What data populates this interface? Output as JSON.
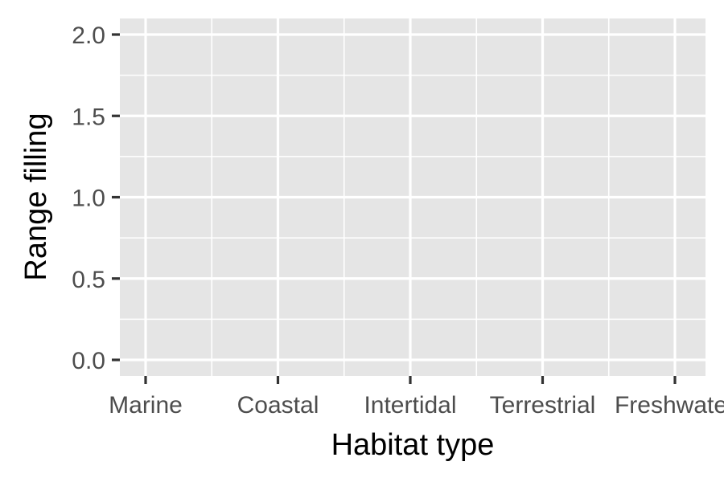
{
  "chart_data": {
    "type": "scatter",
    "title": "",
    "xlabel": "Habitat type",
    "ylabel": "Range filling",
    "categories": [
      "Marine",
      "Coastal",
      "Intertidal",
      "Terrestrial",
      "Freshwater"
    ],
    "ylim": [
      0,
      2
    ],
    "yticks": [
      0.0,
      0.5,
      1.0,
      1.5,
      2.0
    ],
    "ytick_labels": [
      "0.0",
      "0.5",
      "1.0",
      "1.5",
      "2.0"
    ],
    "series": [],
    "grid": true,
    "legend": "none",
    "colors": {
      "panel_background": "#e5e5e5",
      "grid_line": "#ffffff",
      "tick_mark": "#333333",
      "tick_label": "#4d4d4d",
      "axis_title": "#000000"
    }
  }
}
